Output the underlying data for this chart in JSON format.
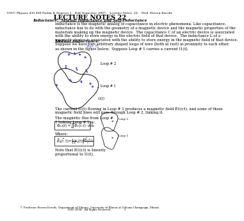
{
  "header_line": "UIUC Physics 435 EM Fields & Sources I    Fall Semester, 2007    Lecture Notes  22    Prof. Steven Errede",
  "title": "LECTURE NOTES 22",
  "subtitle": "Inductance:  Mutual Inductance and Self-Inductance",
  "paragraph1": "Inductance is the magnetic analog of capacitance in electric phenomena. Like capacitance,\ninductance has to do with the geometry of a magnetic device and the magnetic properties of the\nmaterials making up the magnetic device.  The capacitance C of an electric device is associated\nwith the ability to store energy in the electric field of that device.  The inductance L of a\nmagnetic device is associated with the ability to store energy in the magnetic field of that device.",
  "section1": "Mutual Inductance:",
  "paragraph2": "Suppose we have two arbitrary shaped loops of wire (both at rest) in proximity to each other,\nas shown in the figure below.  Suppose Loop # 1 carries a current I1(t).",
  "loop_label1": "Loop # 2",
  "loop_label2": "Loop # 1",
  "caption1": "The current I1(t) flowing in Loop # 1 produces a magnetic field B1(r,t), and some of these\nmagnetic field lines will pass through Loop # 2, linking it.",
  "flux_heading": "The magnetic flux from Loop #\n1 linking Loop # 2 is:",
  "where_label": "Where:",
  "note_text": "Note that B1(r,t) is linearly\nproportional to I1(t).",
  "footer_line1": "© Professor Steven Errede, Department of Physics, University of Illinois at Urbana-Champaign, Illinois",
  "footer_line2": "2005-2008.  All Rights Reserved.",
  "page_num": "1",
  "bg_color": "#ffffff",
  "text_color": "#000000",
  "blue_color": "#3333bb",
  "title_fontsize": 6.5,
  "header_fontsize": 3.2,
  "body_fontsize": 3.8,
  "section_fontsize": 4.2
}
